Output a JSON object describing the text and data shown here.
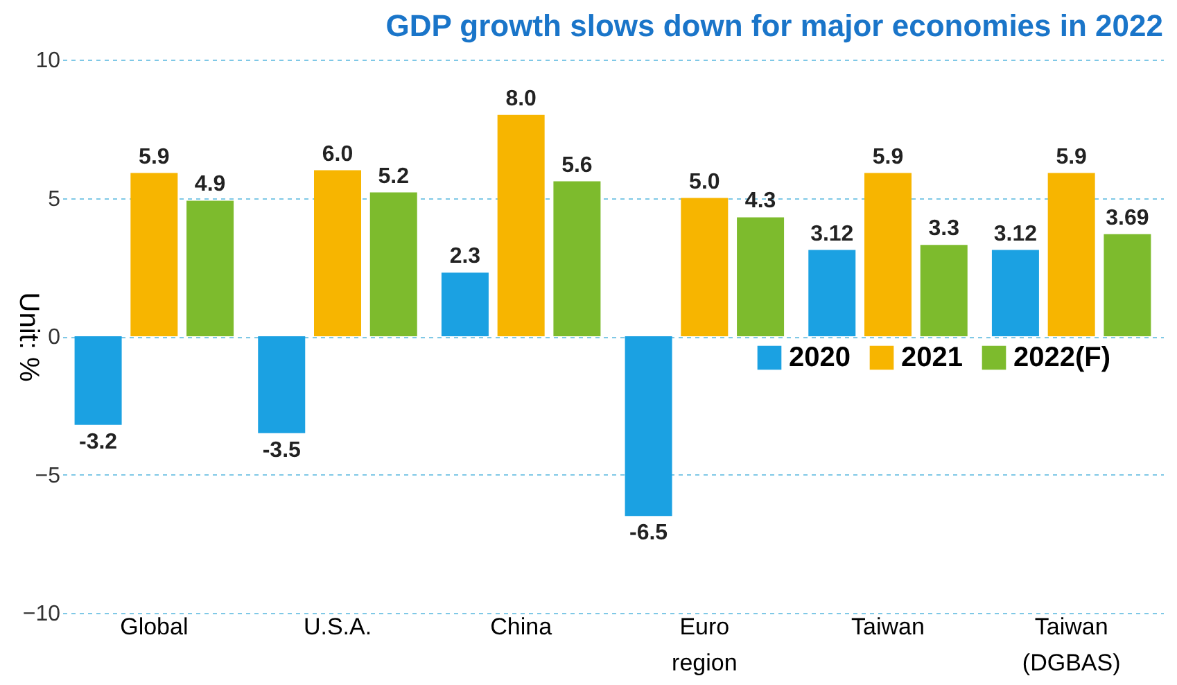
{
  "chart_data": {
    "type": "bar",
    "title": "GDP growth slows down for major economies in 2022",
    "ylabel": "Unit: %",
    "categories": [
      "Global",
      "U.S.A.",
      "China",
      "Euro region",
      "Taiwan",
      "Taiwan (DGBAS)"
    ],
    "series": [
      {
        "name": "2020",
        "color": "#1ba1e2",
        "values": [
          -3.2,
          -3.5,
          2.3,
          -6.5,
          3.12,
          3.12
        ],
        "value_labels": [
          "-3.2",
          "-3.5",
          "2.3",
          "-6.5",
          "3.12",
          "3.12"
        ]
      },
      {
        "name": "2021",
        "color": "#f7b500",
        "values": [
          5.9,
          6.0,
          8.0,
          5.0,
          5.9,
          5.9
        ],
        "value_labels": [
          "5.9",
          "6.0",
          "8.0",
          "5.0",
          "5.9",
          "5.9"
        ]
      },
      {
        "name": "2022(F)",
        "color": "#7dbb2d",
        "values": [
          4.9,
          5.2,
          5.6,
          4.3,
          3.3,
          3.69
        ],
        "value_labels": [
          "4.9",
          "5.2",
          "5.6",
          "4.3",
          "3.3",
          "3.69"
        ]
      }
    ],
    "ylim": [
      -10,
      10
    ],
    "yticks": [
      -10,
      -5,
      0,
      5,
      10
    ],
    "grid": "y",
    "legend": "right"
  }
}
